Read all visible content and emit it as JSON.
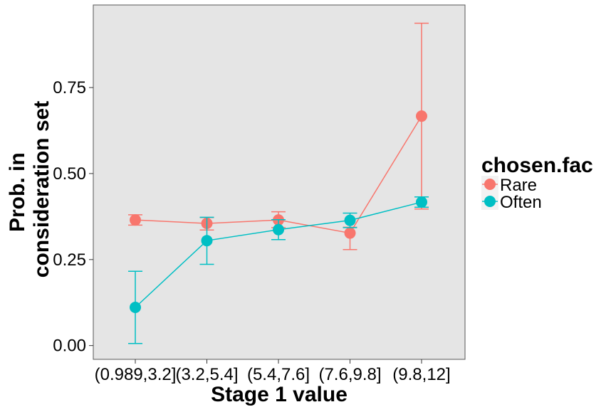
{
  "chart_data": {
    "type": "line",
    "xlabel": "Stage 1 value",
    "ylabel_lines": [
      "Prob. in",
      "consideration set"
    ],
    "categories": [
      "(0.989,3.2]",
      "(3.2,5.4]",
      "(5.4,7.6]",
      "(7.6,9.8]",
      "(9.8,12]"
    ],
    "ylim": [
      -0.04,
      0.99
    ],
    "yticks": [
      0,
      0.25,
      0.5,
      0.75
    ],
    "ytick_labels": [
      "0.00",
      "0.25",
      "0.50",
      "0.75"
    ],
    "grid": false,
    "legend": {
      "title": "chosen.fac",
      "placement": "right"
    },
    "series": [
      {
        "name": "Rare",
        "color": "#F8766D",
        "values": [
          0.365,
          0.355,
          0.365,
          0.327,
          0.667
        ],
        "error_low": [
          0.35,
          0.336,
          0.343,
          0.279,
          0.397
        ],
        "error_high": [
          0.38,
          0.372,
          0.389,
          0.344,
          0.937
        ]
      },
      {
        "name": "Often",
        "color": "#00BFC4",
        "values": [
          0.111,
          0.305,
          0.337,
          0.364,
          0.417
        ],
        "error_low": [
          0.006,
          0.236,
          0.308,
          0.343,
          0.402
        ],
        "error_high": [
          0.216,
          0.373,
          0.366,
          0.385,
          0.432
        ]
      }
    ]
  }
}
